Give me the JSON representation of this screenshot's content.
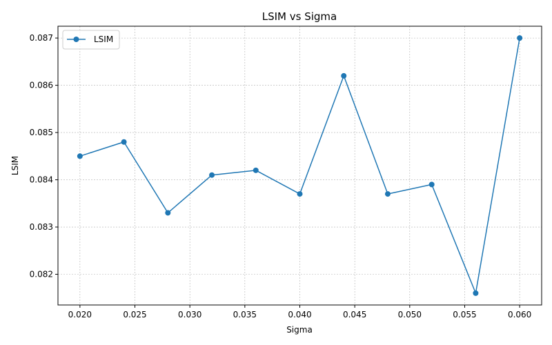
{
  "chart_data": {
    "type": "line",
    "title": "LSIM vs Sigma",
    "xlabel": "Sigma",
    "ylabel": "LSIM",
    "xlim": [
      0.018,
      0.062
    ],
    "ylim": [
      0.08135,
      0.08725
    ],
    "x_ticks": [
      "0.020",
      "0.025",
      "0.030",
      "0.035",
      "0.040",
      "0.045",
      "0.050",
      "0.055",
      "0.060"
    ],
    "y_ticks": [
      "0.082",
      "0.083",
      "0.084",
      "0.085",
      "0.086",
      "0.087"
    ],
    "grid": true,
    "legend_position": "upper-left",
    "series": [
      {
        "name": "LSIM",
        "color": "#1f77b4",
        "marker": "circle",
        "x": [
          0.02,
          0.024,
          0.028,
          0.032,
          0.036,
          0.04,
          0.044,
          0.048,
          0.052,
          0.056,
          0.06
        ],
        "y": [
          0.0845,
          0.0848,
          0.0833,
          0.0841,
          0.0842,
          0.0837,
          0.0862,
          0.0837,
          0.0839,
          0.0816,
          0.087
        ]
      }
    ]
  }
}
